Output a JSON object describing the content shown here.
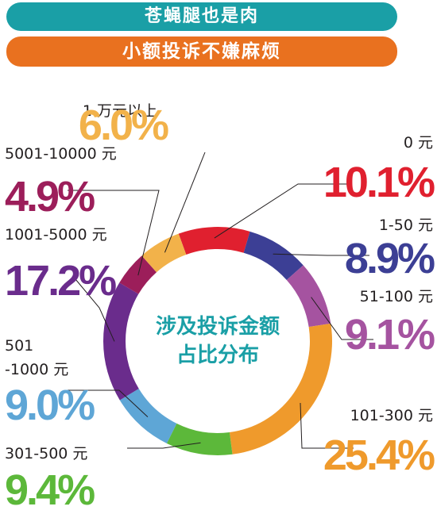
{
  "header": {
    "title": "苍蝇腿也是肉",
    "subtitle": "小额投诉不嫌麻烦",
    "title_color": "#1a9fa6",
    "subtitle_color": "#e9711f"
  },
  "chart_data": {
    "type": "donut",
    "center_title_lines": [
      "涉及投诉金额",
      "占比分布"
    ],
    "unit": "%",
    "slices": [
      {
        "label": "0 元",
        "value": 10.1,
        "display": "10.1%",
        "color": "#e0202f"
      },
      {
        "label": "1-50 元",
        "value": 8.9,
        "display": "8.9%",
        "color": "#3c3f95"
      },
      {
        "label": "51-100 元",
        "value": 9.1,
        "display": "9.1%",
        "color": "#a553a0"
      },
      {
        "label": "101-300 元",
        "value": 25.4,
        "display": "25.4%",
        "color": "#ef9a2c"
      },
      {
        "label": "301-500 元",
        "value": 9.4,
        "display": "9.4%",
        "color": "#5cb83a"
      },
      {
        "label": "501 -1000 元",
        "value": 9.0,
        "display": "9.0%",
        "color": "#5ea6d6"
      },
      {
        "label": "1001-5000 元",
        "value": 17.2,
        "display": "17.2%",
        "color": "#6a2c8c"
      },
      {
        "label": "5001-10000 元",
        "value": 4.9,
        "display": "4.9%",
        "color": "#9c1e5a"
      },
      {
        "label": "1 万元以上",
        "value": 6.0,
        "display": "6.0%",
        "color": "#f2b24a"
      }
    ]
  }
}
